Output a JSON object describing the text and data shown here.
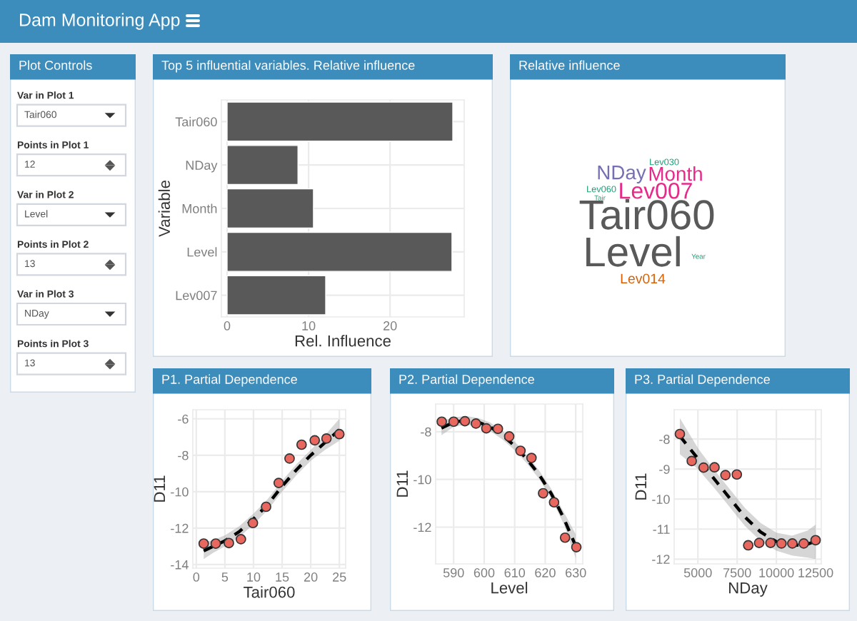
{
  "chart_data": [
    {
      "type": "other",
      "title": "Dam Monitoring App"
    },
    {
      "type": "other",
      "title": "Plot Controls",
      "annotations": [
        "Var in Plot 1",
        "Tair060",
        "Points in Plot 1",
        "12",
        "Var in Plot 2",
        "Level",
        "Points in Plot 2",
        "13",
        "Var in Plot 3",
        "NDay",
        "Points in Plot 3",
        "13"
      ]
    },
    {
      "type": "bar",
      "title": "Top 5 influential variables. Relative influence",
      "orientation": "horizontal",
      "categories": [
        "Tair060",
        "NDay",
        "Month",
        "Level",
        "Lev007"
      ],
      "values": [
        27.7,
        8.7,
        10.6,
        27.6,
        12.1
      ],
      "color": "#595959",
      "xlim": [
        -0.7,
        29.1
      ],
      "xticks": [
        0,
        10,
        20
      ],
      "xlabel": "Rel. Influence",
      "ylabel": "Variable",
      "grid": true
    },
    {
      "type": "other",
      "title": "Relative influence",
      "categories": [
        "Tair060",
        "Level",
        "Lev007",
        "Month",
        "NDay",
        "Lev014",
        "Lev030",
        "Lev060",
        "Tair",
        "Year"
      ]
    },
    {
      "type": "scatter",
      "title": "P1. Partial Dependence",
      "xlabel": "Tair060",
      "ylabel": "D11",
      "xlim": [
        -0.6,
        26.1
      ],
      "xticks": [
        0,
        5,
        10,
        15,
        20,
        25
      ],
      "ylim": [
        -14.2,
        -5.5
      ],
      "yticks": [
        -14,
        -12,
        -10,
        -8,
        -6
      ],
      "grid": true,
      "series": [
        {
          "type": "scatter",
          "marker": "circle",
          "color": "#e8675f",
          "x": [
            1.3,
            3.4,
            5.7,
            7.8,
            9.9,
            12.2,
            14.4,
            16.3,
            18.4,
            20.7,
            22.75,
            25
          ],
          "values": [
            -12.85,
            -12.85,
            -12.82,
            -12.61,
            -11.72,
            -10.83,
            -9.52,
            -8.18,
            -7.42,
            -7.18,
            -7.08,
            -6.84
          ]
        },
        {
          "type": "line",
          "line_style": "dashed",
          "color": "#000000",
          "x": [
            1.3,
            3,
            5,
            7.5,
            10,
            12.5,
            15,
            17.5,
            20,
            22.5,
            25
          ],
          "values": [
            -13.25,
            -13.0,
            -12.7,
            -12.2,
            -11.5,
            -10.7,
            -9.7,
            -8.8,
            -8.0,
            -7.3,
            -6.6
          ],
          "lower": [
            -13.7,
            -13.35,
            -13.0,
            -12.5,
            -11.8,
            -11.0,
            -10.0,
            -9.1,
            -8.3,
            -7.7,
            -7.2
          ],
          "upper": [
            -12.8,
            -12.65,
            -12.4,
            -11.9,
            -11.2,
            -10.4,
            -9.4,
            -8.5,
            -7.7,
            -6.9,
            -6.0
          ]
        }
      ]
    },
    {
      "type": "scatter",
      "title": "P2. Partial Dependence",
      "xlabel": "Level",
      "ylabel": "D11",
      "xlim": [
        584.1,
        632.3
      ],
      "xticks": [
        590,
        600,
        610,
        620,
        630
      ],
      "ylim": [
        -13.54,
        -6.84
      ],
      "yticks": [
        -12,
        -10,
        -8
      ],
      "grid": true,
      "series": [
        {
          "type": "scatter",
          "marker": "circle",
          "color": "#e8675f",
          "x": [
            586.1,
            590,
            593.7,
            597.3,
            600.7,
            604.5,
            608.2,
            611.9,
            615.5,
            619.3,
            622.9,
            626.5,
            630.2
          ],
          "values": [
            -7.58,
            -7.58,
            -7.56,
            -7.66,
            -7.86,
            -7.88,
            -8.2,
            -8.8,
            -9.1,
            -10.58,
            -10.96,
            -12.44,
            -12.84
          ]
        },
        {
          "type": "line",
          "line_style": "dashed",
          "color": "#000000",
          "x": [
            586,
            590,
            594,
            598,
            602,
            606,
            610,
            614,
            618,
            622,
            626,
            630
          ],
          "values": [
            -7.85,
            -7.6,
            -7.52,
            -7.6,
            -7.8,
            -8.15,
            -8.6,
            -9.15,
            -9.8,
            -10.6,
            -11.6,
            -12.8
          ],
          "lower": [
            -8.15,
            -7.8,
            -7.7,
            -7.78,
            -7.98,
            -8.33,
            -8.78,
            -9.33,
            -9.98,
            -10.8,
            -11.85,
            -13.3
          ],
          "upper": [
            -7.55,
            -7.4,
            -7.34,
            -7.42,
            -7.62,
            -7.97,
            -8.42,
            -8.97,
            -9.62,
            -10.4,
            -11.35,
            -12.3
          ]
        }
      ]
    },
    {
      "type": "scatter",
      "title": "P3. Partial Dependence",
      "xlabel": "NDay",
      "ylabel": "D11",
      "xlim": [
        3488,
        12862
      ],
      "xticks": [
        5000,
        7500,
        10000,
        12500
      ],
      "ylim": [
        -12.16,
        -7.02
      ],
      "yticks": [
        -12,
        -11,
        -10,
        -9,
        -8
      ],
      "grid": true,
      "series": [
        {
          "type": "scatter",
          "marker": "circle",
          "color": "#e8675f",
          "x": [
            3851,
            4607,
            5363,
            6058,
            6754,
            7480,
            8206,
            8901,
            9627,
            10323,
            11018,
            11744,
            12500
          ],
          "values": [
            -7.83,
            -8.73,
            -8.95,
            -8.94,
            -9.2,
            -9.18,
            -11.54,
            -11.46,
            -11.46,
            -11.48,
            -11.48,
            -11.48,
            -11.37
          ]
        },
        {
          "type": "line",
          "line_style": "dashed",
          "color": "#000000",
          "x": [
            3850,
            5000,
            6000,
            7000,
            8000,
            9000,
            10000,
            11000,
            12000,
            12500
          ],
          "values": [
            -7.9,
            -8.65,
            -9.3,
            -9.95,
            -10.6,
            -11.1,
            -11.42,
            -11.55,
            -11.5,
            -11.4
          ],
          "lower": [
            -8.5,
            -9.0,
            -9.6,
            -10.25,
            -10.9,
            -11.4,
            -11.72,
            -11.88,
            -11.95,
            -12.0
          ],
          "upper": [
            -7.3,
            -8.3,
            -9.0,
            -9.65,
            -10.3,
            -10.8,
            -11.12,
            -11.22,
            -11.05,
            -10.85
          ]
        }
      ]
    }
  ]
}
